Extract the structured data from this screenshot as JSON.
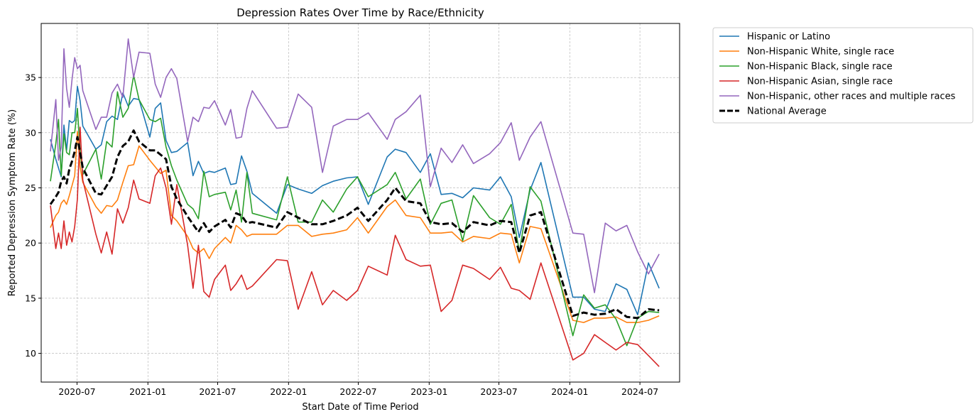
{
  "chart_data": {
    "type": "line",
    "title": "Depression Rates Over Time by Race/Ethnicity",
    "xlabel": "Start Date of Time Period",
    "ylabel": "Reported Depression Symptom Rate (%)",
    "xlim": [
      "2020-03-30",
      "2024-10-12"
    ],
    "ylim": [
      7.4,
      39.9
    ],
    "x_ticks": [
      {
        "date": "2020-07-01",
        "label": "2020-07"
      },
      {
        "date": "2021-01-01",
        "label": "2021-01"
      },
      {
        "date": "2021-07-01",
        "label": "2021-07"
      },
      {
        "date": "2022-01-01",
        "label": "2022-01"
      },
      {
        "date": "2022-07-01",
        "label": "2022-07"
      },
      {
        "date": "2023-01-01",
        "label": "2023-01"
      },
      {
        "date": "2023-07-01",
        "label": "2023-07"
      },
      {
        "date": "2024-01-01",
        "label": "2024-01"
      },
      {
        "date": "2024-07-01",
        "label": "2024-07"
      }
    ],
    "y_ticks": [
      10,
      15,
      20,
      25,
      30,
      35
    ],
    "grid": true,
    "legend_position": "outside-right",
    "dates": [
      "2020-04-23",
      "2020-05-07",
      "2020-05-14",
      "2020-05-21",
      "2020-05-28",
      "2020-06-04",
      "2020-06-11",
      "2020-06-18",
      "2020-06-25",
      "2020-07-02",
      "2020-07-09",
      "2020-07-16",
      "2020-08-19",
      "2020-09-02",
      "2020-09-16",
      "2020-09-30",
      "2020-10-14",
      "2020-10-28",
      "2020-11-11",
      "2020-11-25",
      "2020-12-09",
      "2021-01-06",
      "2021-01-20",
      "2021-02-03",
      "2021-02-17",
      "2021-03-03",
      "2021-03-17",
      "2021-04-14",
      "2021-04-28",
      "2021-05-12",
      "2021-05-26",
      "2021-06-09",
      "2021-06-23",
      "2021-07-21",
      "2021-08-04",
      "2021-08-18",
      "2021-09-01",
      "2021-09-15",
      "2021-09-29",
      "2021-12-01",
      "2021-12-29",
      "2022-01-26",
      "2022-03-02",
      "2022-03-30",
      "2022-04-27",
      "2022-06-01",
      "2022-06-29",
      "2022-07-27",
      "2022-09-14",
      "2022-10-05",
      "2022-11-02",
      "2022-12-09",
      "2023-01-04",
      "2023-02-01",
      "2023-03-01",
      "2023-03-29",
      "2023-04-26",
      "2023-06-07",
      "2023-07-05",
      "2023-08-02",
      "2023-08-23",
      "2023-09-20",
      "2023-10-18",
      "2024-01-09",
      "2024-02-06",
      "2024-03-05",
      "2024-04-02",
      "2024-04-30",
      "2024-05-28",
      "2024-06-25",
      "2024-07-23",
      "2024-08-20"
    ],
    "series": [
      {
        "name": "Hispanic or Latino",
        "color": "#1f77b4",
        "style": "solid",
        "values": [
          29.4,
          27.6,
          26.8,
          26.0,
          30.7,
          28.4,
          31.1,
          30.9,
          31.1,
          34.2,
          32.9,
          30.6,
          28.5,
          28.9,
          31.0,
          31.5,
          31.2,
          33.6,
          32.4,
          33.1,
          33.0,
          29.6,
          32.2,
          32.7,
          29.3,
          28.2,
          28.3,
          29.1,
          26.1,
          27.4,
          26.3,
          26.5,
          26.4,
          26.8,
          25.3,
          25.4,
          27.9,
          26.5,
          24.5,
          22.7,
          25.3,
          24.9,
          24.5,
          25.2,
          25.6,
          25.9,
          26.0,
          23.5,
          27.8,
          28.5,
          28.2,
          26.4,
          28.1,
          24.4,
          24.5,
          24.1,
          25.0,
          24.8,
          26.0,
          24.2,
          20.5,
          24.8,
          27.3,
          15.1,
          15.1,
          14.0,
          13.8,
          16.3,
          15.8,
          13.5,
          18.2,
          15.9
        ]
      },
      {
        "name": "Non-Hispanic White, single race",
        "color": "#ff7f0e",
        "style": "solid",
        "values": [
          21.4,
          22.5,
          22.8,
          23.6,
          23.9,
          23.5,
          24.3,
          25.2,
          26.1,
          30.1,
          26.9,
          25.5,
          23.3,
          22.7,
          23.4,
          23.3,
          23.9,
          25.5,
          27.0,
          27.1,
          28.8,
          27.5,
          26.9,
          26.3,
          26.6,
          22.5,
          22.0,
          20.6,
          19.5,
          19.1,
          19.5,
          18.6,
          19.5,
          20.5,
          20.0,
          21.6,
          21.2,
          20.6,
          20.8,
          20.8,
          21.6,
          21.6,
          20.6,
          20.8,
          20.9,
          21.2,
          22.3,
          20.9,
          23.3,
          23.9,
          22.5,
          22.3,
          20.9,
          20.9,
          21.0,
          20.1,
          20.6,
          20.4,
          20.9,
          20.8,
          18.2,
          21.5,
          21.3,
          13.0,
          12.8,
          13.2,
          13.2,
          13.3,
          12.8,
          12.8,
          13.0,
          13.4
        ]
      },
      {
        "name": "Non-Hispanic Black, single race",
        "color": "#2ca02c",
        "style": "solid",
        "values": [
          25.6,
          29.0,
          31.2,
          26.1,
          29.9,
          28.2,
          28.0,
          30.0,
          30.0,
          32.2,
          28.3,
          26.2,
          28.5,
          25.8,
          29.2,
          28.7,
          33.7,
          31.4,
          32.2,
          35.2,
          33.0,
          31.2,
          31.0,
          31.3,
          28.7,
          27.0,
          25.7,
          23.5,
          23.1,
          22.2,
          26.5,
          24.2,
          24.4,
          24.6,
          23.0,
          24.8,
          21.9,
          26.4,
          22.7,
          22.1,
          26.0,
          21.9,
          21.9,
          23.9,
          22.8,
          24.9,
          26.0,
          24.2,
          25.3,
          26.4,
          24.0,
          25.8,
          21.7,
          23.6,
          23.9,
          20.2,
          24.3,
          22.3,
          21.7,
          23.5,
          19.2,
          25.1,
          23.8,
          11.6,
          15.3,
          14.1,
          14.4,
          13.1,
          10.7,
          13.2,
          13.8,
          13.7
        ]
      },
      {
        "name": "Non-Hispanic Asian, single race",
        "color": "#d62728",
        "style": "solid",
        "values": [
          23.4,
          19.5,
          20.9,
          19.5,
          22.0,
          19.8,
          21.0,
          20.1,
          21.5,
          24.0,
          30.5,
          25.7,
          20.8,
          19.1,
          21.0,
          19.0,
          23.1,
          21.8,
          23.2,
          25.7,
          24.0,
          23.6,
          26.1,
          26.8,
          25.0,
          21.7,
          25.3,
          19.8,
          15.9,
          19.8,
          15.6,
          15.1,
          16.7,
          18.0,
          15.7,
          16.3,
          17.1,
          15.8,
          16.1,
          18.5,
          18.4,
          14.0,
          17.4,
          14.4,
          15.7,
          14.8,
          15.7,
          17.9,
          17.1,
          20.7,
          18.5,
          17.9,
          18.0,
          13.8,
          14.8,
          18.0,
          17.7,
          16.7,
          17.8,
          15.9,
          15.7,
          14.9,
          18.2,
          9.4,
          10.0,
          11.7,
          11.0,
          10.3,
          11.0,
          10.8,
          9.8,
          8.8
        ]
      },
      {
        "name": "Non-Hispanic, other races and multiple races",
        "color": "#9467bd",
        "style": "solid",
        "values": [
          28.3,
          33.0,
          27.5,
          28.7,
          37.6,
          34.0,
          32.3,
          34.8,
          36.8,
          35.8,
          36.1,
          33.8,
          30.3,
          31.4,
          31.4,
          33.6,
          34.4,
          33.2,
          38.5,
          35.0,
          37.3,
          37.2,
          34.4,
          33.2,
          35.0,
          35.8,
          34.9,
          29.2,
          31.4,
          31.0,
          32.3,
          32.2,
          32.9,
          30.7,
          32.1,
          29.5,
          29.6,
          32.2,
          33.8,
          30.4,
          30.5,
          33.5,
          32.3,
          26.4,
          30.6,
          31.2,
          31.2,
          31.8,
          29.4,
          31.2,
          31.9,
          33.4,
          25.1,
          28.6,
          27.3,
          28.9,
          27.2,
          28.1,
          29.1,
          30.9,
          27.5,
          29.6,
          31.0,
          20.9,
          20.8,
          15.5,
          21.8,
          21.1,
          21.6,
          19.2,
          17.2,
          19.0
        ]
      },
      {
        "name": "National Average",
        "color": "#000000",
        "style": "dashed",
        "values": [
          23.5,
          24.2,
          24.6,
          25.6,
          26.0,
          25.4,
          26.7,
          27.4,
          28.3,
          29.6,
          28.2,
          26.8,
          24.5,
          24.4,
          25.2,
          26.0,
          27.8,
          28.8,
          29.2,
          30.2,
          29.2,
          28.4,
          28.4,
          28.0,
          27.6,
          25.1,
          24.0,
          22.4,
          21.7,
          21.0,
          21.8,
          21.0,
          21.5,
          22.1,
          21.4,
          22.7,
          22.5,
          21.8,
          21.9,
          21.4,
          22.8,
          22.3,
          21.7,
          21.7,
          22.0,
          22.5,
          23.2,
          22.0,
          23.9,
          25.0,
          23.8,
          23.6,
          21.9,
          21.7,
          21.8,
          21.0,
          21.9,
          21.6,
          22.0,
          21.9,
          19.1,
          22.5,
          22.8,
          13.4,
          13.7,
          13.5,
          13.6,
          14.0,
          13.3,
          13.2,
          14.0,
          13.9
        ]
      }
    ]
  }
}
